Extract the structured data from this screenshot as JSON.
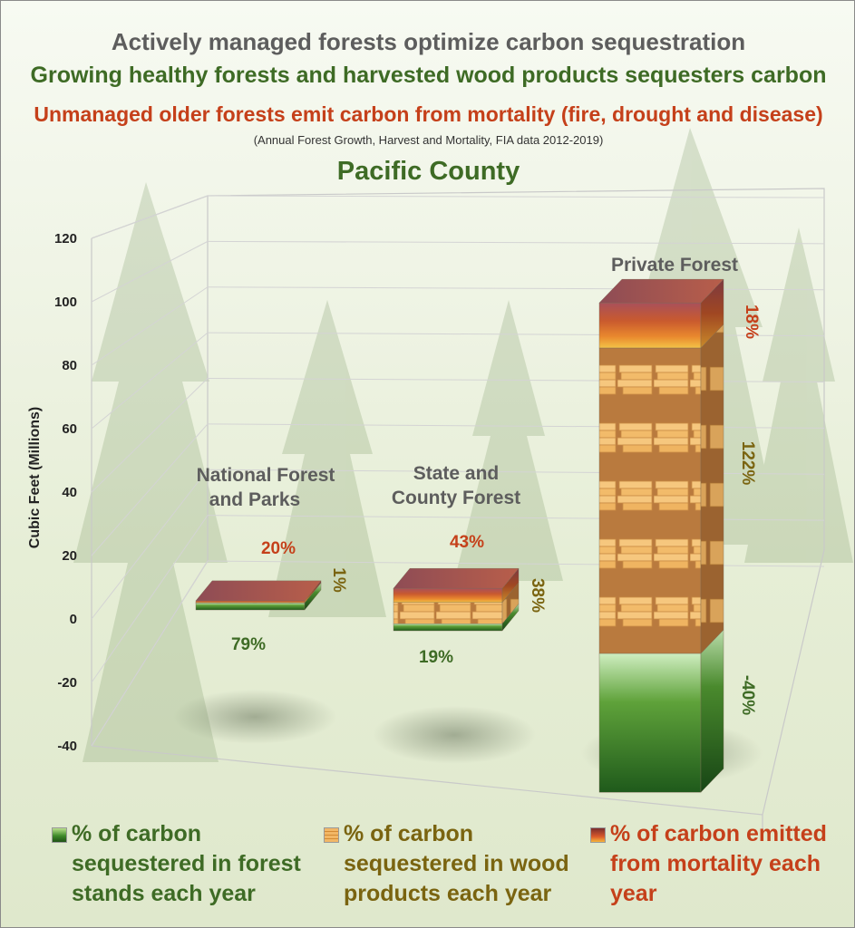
{
  "titles": {
    "line1": "Actively managed forests optimize carbon sequestration",
    "line2": "Growing healthy forests and harvested wood products sequesters carbon",
    "line3": "Unmanaged older forests emit carbon from mortality (fire, drought and disease)",
    "line4": "(Annual Forest Growth, Harvest and Mortality, FIA data 2012-2019)",
    "county": "Pacific County"
  },
  "legend": {
    "forest": "% of carbon sequestered in forest stands each year",
    "wood": "% of carbon sequestered in wood products each year",
    "mortality": "% of carbon emitted from mortality each year"
  },
  "colors": {
    "forest_green": "#3e6b25",
    "wood_olive": "#7a6410",
    "mortality_red": "#c5401a",
    "title_gray": "#5d5d5d"
  },
  "chart_data": {
    "type": "bar",
    "stacked": true,
    "three_d": true,
    "ylabel": "Cubic Feet (Millions)",
    "ylim": [
      -40,
      120
    ],
    "yticks": [
      -40,
      -20,
      0,
      20,
      40,
      60,
      80,
      100,
      120
    ],
    "grid": true,
    "legend_position": "bottom",
    "categories": [
      "National Forest and Parks",
      "State and County Forest",
      "Private Forest"
    ],
    "series": [
      {
        "key": "forest",
        "values": [
          3,
          1,
          -40
        ],
        "labels": [
          "79%",
          "19%",
          "-40%"
        ]
      },
      {
        "key": "wood",
        "values": [
          0.1,
          3,
          88
        ],
        "labels": [
          "1%",
          "38%",
          "122%"
        ]
      },
      {
        "key": "mortality",
        "values": [
          0.8,
          2,
          13
        ],
        "labels": [
          "20%",
          "43%",
          "18%"
        ]
      }
    ]
  }
}
